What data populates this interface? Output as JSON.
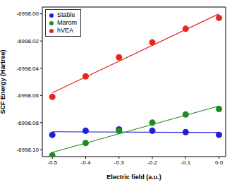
{
  "chart_data": {
    "type": "scatter",
    "x_label": "Electric field (a.u.)",
    "y_label": "SCF Energy (Hartree)",
    "x": [
      -0.5,
      -0.4,
      -0.3,
      -0.2,
      -0.1,
      0.0
    ],
    "series": [
      {
        "name": "Stable",
        "color": "#1f1fd6",
        "marker": "circle",
        "values": [
          -6998.089,
          -6998.086,
          -6998.085,
          -6998.086,
          -6998.087,
          -6998.089
        ]
      },
      {
        "name": "Marom",
        "color": "#1f8c1f",
        "marker": "circle",
        "values": [
          -6998.104,
          -6998.095,
          -6998.086,
          -6998.08,
          -6998.074,
          -6998.07
        ]
      },
      {
        "name": "hVEA",
        "color": "#e8251f",
        "marker": "circle",
        "values": [
          -6998.061,
          -6998.046,
          -6998.032,
          -6998.021,
          -6998.011,
          -6998.003
        ]
      }
    ],
    "xlim": [
      -0.53,
      0.02
    ],
    "xticks": [
      -0.5,
      -0.4,
      -0.3,
      -0.2,
      -0.1,
      {
        "value": 0,
        "label": "0.0"
      }
    ],
    "ylim": [
      -6998.105,
      -6997.995
    ],
    "yticks": [
      {
        "value": -6998.1,
        "label": "-6998.10"
      },
      -6998.08,
      -6998.06,
      -6998.04,
      -6998.02,
      {
        "value": -6998,
        "label": "-6998.00"
      }
    ],
    "grid": false,
    "legend": "upper left"
  }
}
